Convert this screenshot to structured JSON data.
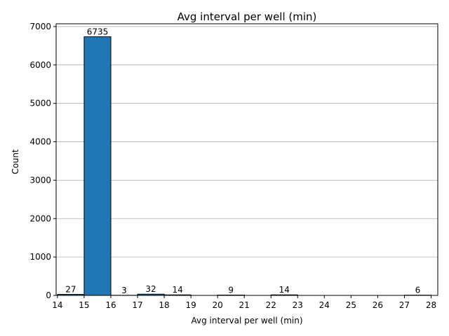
{
  "chart_data": {
    "type": "bar",
    "title": "Avg interval per well (min)",
    "xlabel": "Avg interval per well (min)",
    "ylabel": "Count",
    "bins": [
      {
        "start": 14,
        "end": 15,
        "value": 27
      },
      {
        "start": 15,
        "end": 16,
        "value": 6735
      },
      {
        "start": 16,
        "end": 17,
        "value": 3
      },
      {
        "start": 17,
        "end": 18,
        "value": 32
      },
      {
        "start": 18,
        "end": 19,
        "value": 14
      },
      {
        "start": 19,
        "end": 20,
        "value": 0
      },
      {
        "start": 20,
        "end": 21,
        "value": 9
      },
      {
        "start": 21,
        "end": 22,
        "value": 0
      },
      {
        "start": 22,
        "end": 23,
        "value": 14
      },
      {
        "start": 23,
        "end": 24,
        "value": 0
      },
      {
        "start": 24,
        "end": 25,
        "value": 0
      },
      {
        "start": 25,
        "end": 26,
        "value": 0
      },
      {
        "start": 26,
        "end": 27,
        "value": 0
      },
      {
        "start": 27,
        "end": 28,
        "value": 6
      }
    ],
    "data_labels": [
      {
        "x": 14.5,
        "text": "27"
      },
      {
        "x": 15.5,
        "text": "6735"
      },
      {
        "x": 16.5,
        "text": "3"
      },
      {
        "x": 17.5,
        "text": "32"
      },
      {
        "x": 18.5,
        "text": "14"
      },
      {
        "x": 20.5,
        "text": "9"
      },
      {
        "x": 22.5,
        "text": "14"
      },
      {
        "x": 27.5,
        "text": "6"
      }
    ],
    "xlim": [
      13.95,
      28.25
    ],
    "ylim": [
      0,
      7072
    ],
    "xticks": [
      14,
      15,
      16,
      17,
      18,
      19,
      20,
      21,
      22,
      23,
      24,
      25,
      26,
      27,
      28
    ],
    "yticks": [
      0,
      1000,
      2000,
      3000,
      4000,
      5000,
      6000,
      7000
    ],
    "grid": "horizontal",
    "colors": {
      "bar_fill": "#1f77b4",
      "bar_edge": "#000000",
      "grid": "#b0b0b0"
    }
  }
}
